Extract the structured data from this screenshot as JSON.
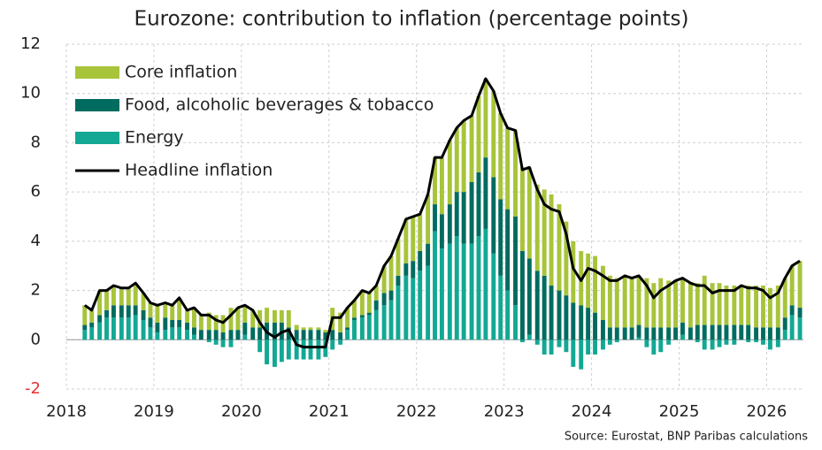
{
  "chart_data": {
    "type": "bar",
    "title": "Eurozone: contribution to inflation (percentage points)",
    "source": "Source: Eurostat, BNP Paribas calculations",
    "stacked": true,
    "grid": true,
    "legend": "upper left",
    "negative_tick_color": "#e8312f",
    "xlim": [
      2018,
      2026.42
    ],
    "xticks": [
      2018,
      2019,
      2020,
      2021,
      2022,
      2023,
      2024,
      2025,
      2026
    ],
    "ylim": [
      -2,
      12
    ],
    "yticks": [
      -2,
      0,
      2,
      4,
      6,
      8,
      10,
      12
    ],
    "x": [
      2018.21,
      2018.29,
      2018.38,
      2018.46,
      2018.54,
      2018.63,
      2018.71,
      2018.79,
      2018.88,
      2018.96,
      2019.04,
      2019.13,
      2019.21,
      2019.29,
      2019.38,
      2019.46,
      2019.54,
      2019.63,
      2019.71,
      2019.79,
      2019.88,
      2019.96,
      2020.04,
      2020.13,
      2020.21,
      2020.29,
      2020.38,
      2020.46,
      2020.54,
      2020.63,
      2020.71,
      2020.79,
      2020.88,
      2020.96,
      2021.04,
      2021.13,
      2021.21,
      2021.29,
      2021.38,
      2021.46,
      2021.54,
      2021.63,
      2021.71,
      2021.79,
      2021.88,
      2021.96,
      2022.04,
      2022.13,
      2022.21,
      2022.29,
      2022.38,
      2022.46,
      2022.54,
      2022.63,
      2022.71,
      2022.79,
      2022.88,
      2022.96,
      2023.04,
      2023.13,
      2023.21,
      2023.29,
      2023.38,
      2023.46,
      2023.54,
      2023.63,
      2023.71,
      2023.79,
      2023.88,
      2023.96,
      2024.04,
      2024.13,
      2024.21,
      2024.29,
      2024.38,
      2024.46,
      2024.54,
      2024.63,
      2024.71,
      2024.79,
      2024.88,
      2024.96,
      2025.04,
      2025.13,
      2025.21,
      2025.29,
      2025.38,
      2025.46,
      2025.54,
      2025.63,
      2025.71,
      2025.79,
      2025.88,
      2025.96,
      2026.04,
      2026.13,
      2026.21,
      2026.29,
      2026.38
    ],
    "series": [
      {
        "name": "Core inflation",
        "color": "#a7c43a",
        "type": "bar",
        "values": [
          0.8,
          0.5,
          1.0,
          0.8,
          0.8,
          0.7,
          0.7,
          0.9,
          0.7,
          0.6,
          0.7,
          0.6,
          0.6,
          0.9,
          0.5,
          0.8,
          0.6,
          0.7,
          0.6,
          0.7,
          0.9,
          0.9,
          0.7,
          0.7,
          0.7,
          0.6,
          0.5,
          0.5,
          0.7,
          0.2,
          0.1,
          0.1,
          0.1,
          0.1,
          0.9,
          0.8,
          0.8,
          0.7,
          1.0,
          0.8,
          0.6,
          1.1,
          1.4,
          1.5,
          1.8,
          1.8,
          1.5,
          2.0,
          1.9,
          2.3,
          2.6,
          2.6,
          2.9,
          2.7,
          3.1,
          3.2,
          3.5,
          3.5,
          3.3,
          3.5,
          3.4,
          3.7,
          3.5,
          3.5,
          3.7,
          3.5,
          3.0,
          2.5,
          2.2,
          2.2,
          2.3,
          2.2,
          2.1,
          2.0,
          2.1,
          2.0,
          2.0,
          2.0,
          1.8,
          2.0,
          1.9,
          1.9,
          1.8,
          1.8,
          1.7,
          2.0,
          1.7,
          1.7,
          1.6,
          1.6,
          1.6,
          1.6,
          1.7,
          1.7,
          1.6,
          1.7,
          1.6,
          1.6,
          1.9
        ]
      },
      {
        "name": "Food, alcoholic beverages & tobacco",
        "color": "#006b5f",
        "type": "bar",
        "values": [
          0.2,
          0.2,
          0.3,
          0.3,
          0.5,
          0.5,
          0.5,
          0.4,
          0.4,
          0.4,
          0.4,
          0.5,
          0.3,
          0.3,
          0.3,
          0.3,
          0.4,
          0.4,
          0.4,
          0.3,
          0.4,
          0.4,
          0.5,
          0.5,
          0.5,
          0.7,
          0.7,
          0.7,
          0.5,
          0.4,
          0.4,
          0.4,
          0.4,
          0.3,
          0.4,
          0.3,
          0.1,
          0.1,
          0.1,
          0.1,
          0.4,
          0.5,
          0.4,
          0.4,
          0.5,
          0.7,
          0.8,
          0.9,
          1.1,
          1.4,
          1.6,
          1.8,
          2.1,
          2.5,
          2.6,
          2.9,
          3.1,
          3.1,
          3.3,
          3.6,
          3.6,
          3.1,
          2.8,
          2.6,
          2.2,
          2.0,
          1.8,
          1.5,
          1.4,
          1.3,
          1.1,
          0.8,
          0.5,
          0.5,
          0.5,
          0.5,
          0.5,
          0.5,
          0.5,
          0.5,
          0.5,
          0.5,
          0.5,
          0.5,
          0.6,
          0.6,
          0.6,
          0.6,
          0.6,
          0.6,
          0.6,
          0.6,
          0.5,
          0.5,
          0.5,
          0.5,
          0.5,
          0.4,
          0.4
        ]
      },
      {
        "name": "Energy",
        "color": "#12a894",
        "type": "bar",
        "values": [
          0.4,
          0.5,
          0.7,
          0.9,
          0.9,
          0.9,
          0.9,
          1.0,
          0.8,
          0.5,
          0.3,
          0.4,
          0.5,
          0.5,
          0.4,
          0.2,
          0.0,
          -0.1,
          -0.2,
          -0.3,
          -0.3,
          0.0,
          0.2,
          0.0,
          -0.5,
          -1.0,
          -1.1,
          -0.9,
          -0.8,
          -0.8,
          -0.8,
          -0.8,
          -0.8,
          -0.7,
          -0.4,
          -0.2,
          0.4,
          0.8,
          0.9,
          1.0,
          1.2,
          1.4,
          1.6,
          2.2,
          2.6,
          2.5,
          2.8,
          3.0,
          4.4,
          3.7,
          3.9,
          4.2,
          3.9,
          3.9,
          4.2,
          4.5,
          3.5,
          2.6,
          2.0,
          1.4,
          -0.1,
          0.2,
          -0.2,
          -0.6,
          -0.6,
          -0.3,
          -0.5,
          -1.1,
          -1.2,
          -0.6,
          -0.6,
          -0.4,
          -0.2,
          -0.1,
          0.0,
          0.0,
          0.1,
          -0.3,
          -0.6,
          -0.5,
          -0.2,
          0.0,
          0.2,
          0.0,
          -0.1,
          -0.4,
          -0.4,
          -0.3,
          -0.2,
          -0.2,
          0.0,
          -0.1,
          -0.1,
          -0.2,
          -0.4,
          -0.3,
          0.4,
          1.0,
          0.9
        ]
      },
      {
        "name": "Headline inflation",
        "color": "#000000",
        "type": "line",
        "values": [
          1.4,
          1.2,
          2.0,
          2.0,
          2.2,
          2.1,
          2.1,
          2.3,
          1.9,
          1.5,
          1.4,
          1.5,
          1.4,
          1.7,
          1.2,
          1.3,
          1.0,
          1.0,
          0.8,
          0.7,
          1.0,
          1.3,
          1.4,
          1.2,
          0.7,
          0.3,
          0.1,
          0.3,
          0.4,
          -0.2,
          -0.3,
          -0.3,
          -0.3,
          -0.3,
          0.9,
          0.9,
          1.3,
          1.6,
          2.0,
          1.9,
          2.2,
          3.0,
          3.4,
          4.1,
          4.9,
          5.0,
          5.1,
          5.9,
          7.4,
          7.4,
          8.1,
          8.6,
          8.9,
          9.1,
          9.9,
          10.6,
          10.1,
          9.2,
          8.6,
          8.5,
          6.9,
          7.0,
          6.1,
          5.5,
          5.3,
          5.2,
          4.3,
          2.9,
          2.4,
          2.9,
          2.8,
          2.6,
          2.4,
          2.4,
          2.6,
          2.5,
          2.6,
          2.2,
          1.7,
          2.0,
          2.2,
          2.4,
          2.5,
          2.3,
          2.2,
          2.2,
          1.9,
          2.0,
          2.0,
          2.0,
          2.2,
          2.1,
          2.1,
          2.0,
          1.7,
          1.9,
          2.5,
          3.0,
          3.2
        ]
      }
    ]
  }
}
